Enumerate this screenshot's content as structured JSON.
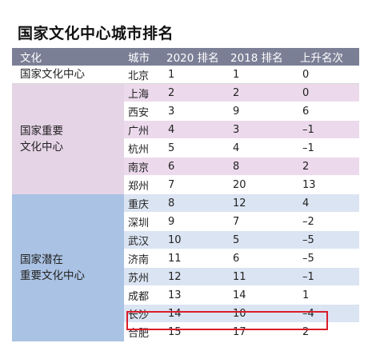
{
  "title": "国家文化中心城市排名",
  "columns": [
    "文化",
    "城市",
    "2020 排名",
    "2018 排名",
    "上升名次"
  ],
  "groups": [
    {
      "category": "国家文化中心",
      "rows": [
        {
          "city": "北京",
          "rank_2020": "1",
          "rank_2018": "1",
          "rise": "0"
        }
      ]
    },
    {
      "category": "国家重要\n文化中心",
      "rows": [
        {
          "city": "上海",
          "rank_2020": "2",
          "rank_2018": "2",
          "rise": "0"
        },
        {
          "city": "西安",
          "rank_2020": "3",
          "rank_2018": "9",
          "rise": "6"
        },
        {
          "city": "广州",
          "rank_2020": "4",
          "rank_2018": "3",
          "rise": "–1"
        },
        {
          "city": "杭州",
          "rank_2020": "5",
          "rank_2018": "4",
          "rise": "–1"
        },
        {
          "city": "南京",
          "rank_2020": "6",
          "rank_2018": "8",
          "rise": "2"
        },
        {
          "city": "郑州",
          "rank_2020": "7",
          "rank_2018": "20",
          "rise": "13"
        }
      ]
    },
    {
      "category": "国家潜在\n重要文化中心",
      "rows": [
        {
          "city": "重庆",
          "rank_2020": "8",
          "rank_2018": "12",
          "rise": "4"
        },
        {
          "city": "深圳",
          "rank_2020": "9",
          "rank_2018": "7",
          "rise": "–2"
        },
        {
          "city": "武汉",
          "rank_2020": "10",
          "rank_2018": "5",
          "rise": "–5"
        },
        {
          "city": "济南",
          "rank_2020": "11",
          "rank_2018": "6",
          "rise": "–5"
        },
        {
          "city": "苏州",
          "rank_2020": "12",
          "rank_2018": "11",
          "rise": "–1"
        },
        {
          "city": "成都",
          "rank_2020": "13",
          "rank_2018": "14",
          "rise": "1"
        },
        {
          "city": "长沙",
          "rank_2020": "14",
          "rank_2018": "10",
          "rise": "–4"
        },
        {
          "city": "合肥",
          "rank_2020": "15",
          "rank_2018": "17",
          "rise": "2"
        }
      ]
    }
  ],
  "highlight": {
    "city": "长沙",
    "color": "#d91e2a"
  },
  "colors": {
    "header_bg": "#7b7f96",
    "group2_bg": "#ecdaec",
    "group3_bg": "#dbe4f2",
    "group3_label_bg": "#aac2e3"
  }
}
